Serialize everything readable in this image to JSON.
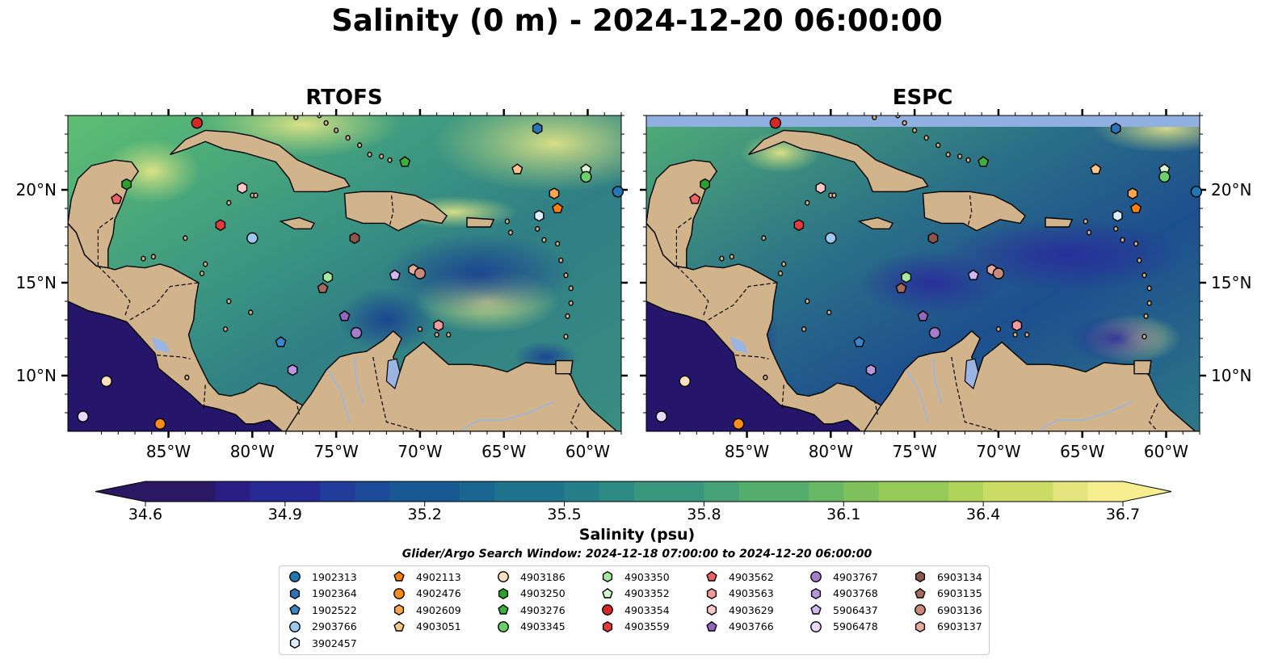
{
  "title": "Salinity (0 m) - 2024-12-20 06:00:00",
  "panels": [
    {
      "name": "RTOFS"
    },
    {
      "name": "ESPC"
    }
  ],
  "map": {
    "lon_range": [
      -91,
      -58
    ],
    "lat_range": [
      7,
      24
    ],
    "lon_ticks": [
      "85°W",
      "80°W",
      "75°W",
      "70°W",
      "65°W",
      "60°W"
    ],
    "lat_ticks": [
      "20°N",
      "15°N",
      "10°N"
    ],
    "colors": {
      "land": "#d2b48c",
      "pacific": "#26166b",
      "lake": "#9ab5e3",
      "espc_nodata": "#8fb0e0"
    }
  },
  "colorbar": {
    "label": "Salinity (psu)",
    "ticks": [
      "34.6",
      "34.9",
      "35.2",
      "35.5",
      "35.8",
      "36.1",
      "36.4",
      "36.7"
    ],
    "range": [
      34.6,
      36.7
    ],
    "extend": "both",
    "colormap": "haline"
  },
  "search_window": "Glider/Argo Search Window: 2024-12-18 07:00:00 to 2024-12-20 06:00:00",
  "legend": [
    {
      "id": "1902313",
      "color": "#1f77b4",
      "marker": "circle"
    },
    {
      "id": "1902364",
      "color": "#2b74b8",
      "marker": "hexagon"
    },
    {
      "id": "1902522",
      "color": "#3b86c8",
      "marker": "pentagon"
    },
    {
      "id": "2903766",
      "color": "#9ec9ee",
      "marker": "circle"
    },
    {
      "id": "3902457",
      "color": "#dbeeff",
      "marker": "hexagon"
    },
    {
      "id": "4902113",
      "color": "#ff7f0e",
      "marker": "pentagon"
    },
    {
      "id": "4902476",
      "color": "#ff8c1a",
      "marker": "circle"
    },
    {
      "id": "4902609",
      "color": "#ffa64d",
      "marker": "hexagon"
    },
    {
      "id": "4903051",
      "color": "#ffc48a",
      "marker": "pentagon"
    },
    {
      "id": "4903186",
      "color": "#ffe0bf",
      "marker": "circle"
    },
    {
      "id": "4903250",
      "color": "#2ca02c",
      "marker": "hexagon"
    },
    {
      "id": "4903276",
      "color": "#3cb03c",
      "marker": "pentagon"
    },
    {
      "id": "4903345",
      "color": "#6bcf6b",
      "marker": "circle"
    },
    {
      "id": "4903350",
      "color": "#a6e8a0",
      "marker": "hexagon"
    },
    {
      "id": "4903352",
      "color": "#d6f7d0",
      "marker": "pentagon"
    },
    {
      "id": "4903354",
      "color": "#d62728",
      "marker": "circle"
    },
    {
      "id": "4903559",
      "color": "#e33b3b",
      "marker": "hexagon"
    },
    {
      "id": "4903562",
      "color": "#ef6262",
      "marker": "pentagon"
    },
    {
      "id": "4903563",
      "color": "#f59a9a",
      "marker": "hexagon"
    },
    {
      "id": "4903629",
      "color": "#fac8c8",
      "marker": "hexagon"
    },
    {
      "id": "4903766",
      "color": "#9467bd",
      "marker": "pentagon"
    },
    {
      "id": "4903767",
      "color": "#a67ccc",
      "marker": "circle"
    },
    {
      "id": "4903768",
      "color": "#b995de",
      "marker": "hexagon"
    },
    {
      "id": "5906437",
      "color": "#d2b8f0",
      "marker": "pentagon"
    },
    {
      "id": "5906478",
      "color": "#e8d8fb",
      "marker": "circle"
    },
    {
      "id": "6903134",
      "color": "#8c564b",
      "marker": "hexagon"
    },
    {
      "id": "6903135",
      "color": "#a6695c",
      "marker": "pentagon"
    },
    {
      "id": "6903136",
      "color": "#c98a7c",
      "marker": "circle"
    },
    {
      "id": "6903137",
      "color": "#e8aa9a",
      "marker": "hexagon"
    }
  ],
  "floats": [
    {
      "id": "4903354",
      "lon": -83.3,
      "lat": 23.6
    },
    {
      "id": "1902364",
      "lon": -63.0,
      "lat": 23.3
    },
    {
      "id": "4903276",
      "lon": -70.9,
      "lat": 21.5
    },
    {
      "id": "4903051",
      "lon": -64.2,
      "lat": 21.1
    },
    {
      "id": "4903352",
      "lon": -60.1,
      "lat": 21.1
    },
    {
      "id": "4903345",
      "lon": -60.1,
      "lat": 20.7
    },
    {
      "id": "4903250",
      "lon": -87.5,
      "lat": 20.3
    },
    {
      "id": "4903629",
      "lon": -80.6,
      "lat": 20.1
    },
    {
      "id": "1902313",
      "lon": -58.2,
      "lat": 19.9
    },
    {
      "id": "4902609",
      "lon": -62.0,
      "lat": 19.8
    },
    {
      "id": "4903562",
      "lon": -88.1,
      "lat": 19.5
    },
    {
      "id": "4902113",
      "lon": -61.8,
      "lat": 19.0
    },
    {
      "id": "3902457",
      "lon": -62.9,
      "lat": 18.6
    },
    {
      "id": "4903559",
      "lon": -81.9,
      "lat": 18.1
    },
    {
      "id": "2903766",
      "lon": -80.0,
      "lat": 17.4
    },
    {
      "id": "6903134",
      "lon": -73.9,
      "lat": 17.4
    },
    {
      "id": "6903137",
      "lon": -70.4,
      "lat": 15.7
    },
    {
      "id": "6903136",
      "lon": -70.0,
      "lat": 15.5
    },
    {
      "id": "5906437",
      "lon": -71.5,
      "lat": 15.4
    },
    {
      "id": "4903350",
      "lon": -75.5,
      "lat": 15.3
    },
    {
      "id": "6903135",
      "lon": -75.8,
      "lat": 14.7
    },
    {
      "id": "4903766",
      "lon": -74.5,
      "lat": 13.2
    },
    {
      "id": "4903563",
      "lon": -68.9,
      "lat": 12.7
    },
    {
      "id": "4903767",
      "lon": -73.8,
      "lat": 12.3
    },
    {
      "id": "1902522",
      "lon": -78.3,
      "lat": 11.8
    },
    {
      "id": "4903768",
      "lon": -77.6,
      "lat": 10.3
    },
    {
      "id": "4903186",
      "lon": -88.7,
      "lat": 9.7
    },
    {
      "id": "5906478",
      "lon": -90.1,
      "lat": 7.8
    },
    {
      "id": "4902476",
      "lon": -85.5,
      "lat": 7.4
    }
  ]
}
